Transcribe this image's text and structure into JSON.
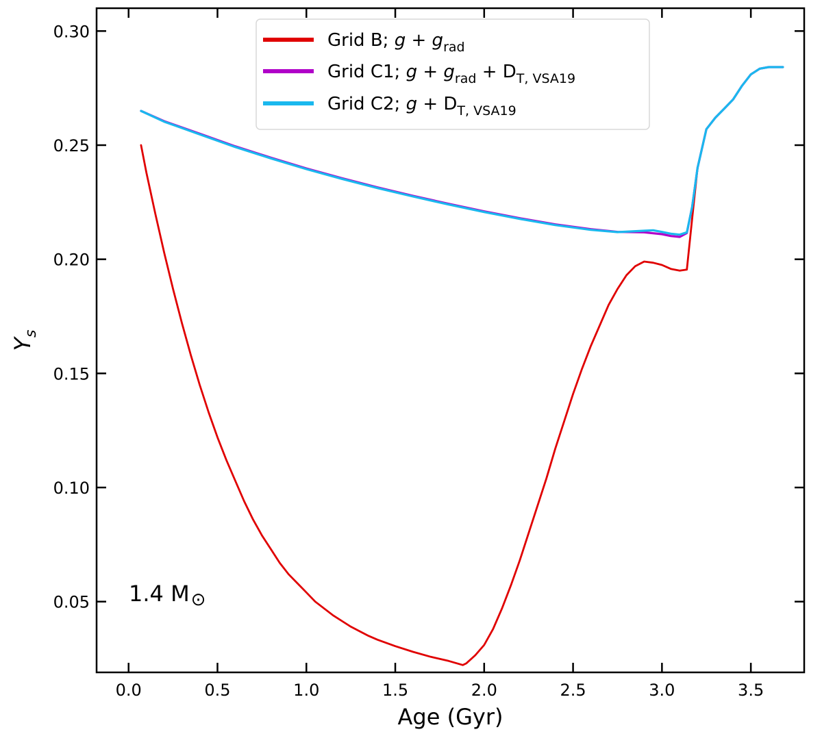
{
  "chart_data": {
    "type": "line",
    "title": "",
    "xlabel": "Age (Gyr)",
    "ylabel_main": "Y",
    "ylabel_sub": "s",
    "xlim": [
      -0.18,
      3.8
    ],
    "ylim": [
      0.019,
      0.31
    ],
    "xticks": [
      0.0,
      0.5,
      1.0,
      1.5,
      2.0,
      2.5,
      3.0,
      3.5
    ],
    "xtick_labels": [
      "0.0",
      "0.5",
      "1.0",
      "1.5",
      "2.0",
      "2.5",
      "3.0",
      "3.5"
    ],
    "yticks": [
      0.05,
      0.1,
      0.15,
      0.2,
      0.25,
      0.3
    ],
    "ytick_labels": [
      "0.05",
      "0.10",
      "0.15",
      "0.20",
      "0.25",
      "0.30"
    ],
    "grid": false,
    "legend_position": "top-center",
    "annotation": {
      "main": "1.4 M",
      "symbol": "⊙"
    },
    "series": [
      {
        "name": "Grid B",
        "legend": [
          {
            "t": "Grid B; ",
            "s": "n"
          },
          {
            "t": "g",
            "s": "i"
          },
          {
            "t": " + ",
            "s": "n"
          },
          {
            "t": "g",
            "s": "i"
          },
          {
            "t": "rad",
            "s": "sub"
          }
        ],
        "color": "#e00000",
        "points": [
          [
            0.07,
            0.25
          ],
          [
            0.1,
            0.238
          ],
          [
            0.15,
            0.22
          ],
          [
            0.2,
            0.203
          ],
          [
            0.25,
            0.187
          ],
          [
            0.3,
            0.172
          ],
          [
            0.35,
            0.158
          ],
          [
            0.4,
            0.145
          ],
          [
            0.45,
            0.133
          ],
          [
            0.5,
            0.122
          ],
          [
            0.55,
            0.112
          ],
          [
            0.6,
            0.103
          ],
          [
            0.65,
            0.094
          ],
          [
            0.7,
            0.086
          ],
          [
            0.75,
            0.079
          ],
          [
            0.8,
            0.073
          ],
          [
            0.85,
            0.067
          ],
          [
            0.9,
            0.062
          ],
          [
            0.95,
            0.058
          ],
          [
            1.0,
            0.054
          ],
          [
            1.05,
            0.05
          ],
          [
            1.1,
            0.047
          ],
          [
            1.15,
            0.044
          ],
          [
            1.2,
            0.0415
          ],
          [
            1.25,
            0.039
          ],
          [
            1.3,
            0.037
          ],
          [
            1.35,
            0.035
          ],
          [
            1.4,
            0.0333
          ],
          [
            1.5,
            0.0305
          ],
          [
            1.6,
            0.028
          ],
          [
            1.7,
            0.0258
          ],
          [
            1.8,
            0.024
          ],
          [
            1.88,
            0.0222
          ],
          [
            1.9,
            0.023
          ],
          [
            1.95,
            0.0265
          ],
          [
            2.0,
            0.031
          ],
          [
            2.05,
            0.038
          ],
          [
            2.1,
            0.047
          ],
          [
            2.15,
            0.057
          ],
          [
            2.2,
            0.068
          ],
          [
            2.25,
            0.08
          ],
          [
            2.3,
            0.092
          ],
          [
            2.35,
            0.104
          ],
          [
            2.4,
            0.117
          ],
          [
            2.45,
            0.129
          ],
          [
            2.5,
            0.141
          ],
          [
            2.55,
            0.152
          ],
          [
            2.6,
            0.162
          ],
          [
            2.65,
            0.171
          ],
          [
            2.7,
            0.18
          ],
          [
            2.75,
            0.187
          ],
          [
            2.8,
            0.193
          ],
          [
            2.85,
            0.197
          ],
          [
            2.9,
            0.199
          ],
          [
            2.95,
            0.1985
          ],
          [
            3.0,
            0.1975
          ],
          [
            3.05,
            0.1958
          ],
          [
            3.1,
            0.195
          ],
          [
            3.14,
            0.1955
          ],
          [
            3.17,
            0.218
          ],
          [
            3.2,
            0.24
          ],
          [
            3.25,
            0.257
          ],
          [
            3.3,
            0.262
          ],
          [
            3.35,
            0.266
          ],
          [
            3.4,
            0.27
          ],
          [
            3.45,
            0.276
          ],
          [
            3.5,
            0.281
          ],
          [
            3.55,
            0.2835
          ],
          [
            3.6,
            0.2842
          ],
          [
            3.68,
            0.2842
          ]
        ]
      },
      {
        "name": "Grid C1",
        "legend": [
          {
            "t": "Grid C1; ",
            "s": "n"
          },
          {
            "t": "g",
            "s": "i"
          },
          {
            "t": " + ",
            "s": "n"
          },
          {
            "t": "g",
            "s": "i"
          },
          {
            "t": "rad",
            "s": "sub"
          },
          {
            "t": " + D",
            "s": "n"
          },
          {
            "t": "T, VSA19",
            "s": "sub"
          }
        ],
        "color": "#b000c8",
        "points": [
          [
            0.07,
            0.265
          ],
          [
            0.2,
            0.2605
          ],
          [
            0.4,
            0.255
          ],
          [
            0.6,
            0.2495
          ],
          [
            0.8,
            0.2445
          ],
          [
            1.0,
            0.2398
          ],
          [
            1.2,
            0.2355
          ],
          [
            1.4,
            0.2315
          ],
          [
            1.6,
            0.2278
          ],
          [
            1.8,
            0.2243
          ],
          [
            2.0,
            0.221
          ],
          [
            2.2,
            0.218
          ],
          [
            2.4,
            0.2153
          ],
          [
            2.6,
            0.2132
          ],
          [
            2.75,
            0.212
          ],
          [
            2.9,
            0.2118
          ],
          [
            3.0,
            0.211
          ],
          [
            3.05,
            0.2102
          ],
          [
            3.1,
            0.2098
          ],
          [
            3.14,
            0.2115
          ],
          [
            3.17,
            0.223
          ],
          [
            3.2,
            0.24
          ],
          [
            3.25,
            0.257
          ],
          [
            3.3,
            0.262
          ],
          [
            3.35,
            0.266
          ],
          [
            3.4,
            0.27
          ],
          [
            3.45,
            0.276
          ],
          [
            3.5,
            0.281
          ],
          [
            3.55,
            0.2835
          ],
          [
            3.6,
            0.2842
          ],
          [
            3.68,
            0.2842
          ]
        ]
      },
      {
        "name": "Grid C2",
        "legend": [
          {
            "t": "Grid C2; ",
            "s": "n"
          },
          {
            "t": "g",
            "s": "i"
          },
          {
            "t": " + D",
            "s": "n"
          },
          {
            "t": "T, VSA19",
            "s": "sub"
          }
        ],
        "color": "#1ab8ee",
        "points": [
          [
            0.07,
            0.265
          ],
          [
            0.2,
            0.2603
          ],
          [
            0.4,
            0.2547
          ],
          [
            0.6,
            0.2492
          ],
          [
            0.8,
            0.2442
          ],
          [
            1.0,
            0.2395
          ],
          [
            1.2,
            0.2352
          ],
          [
            1.4,
            0.2312
          ],
          [
            1.6,
            0.2275
          ],
          [
            1.8,
            0.224
          ],
          [
            2.0,
            0.2207
          ],
          [
            2.2,
            0.2177
          ],
          [
            2.4,
            0.215
          ],
          [
            2.6,
            0.2129
          ],
          [
            2.75,
            0.2119
          ],
          [
            2.9,
            0.2125
          ],
          [
            2.95,
            0.2127
          ],
          [
            3.0,
            0.212
          ],
          [
            3.05,
            0.2112
          ],
          [
            3.1,
            0.2108
          ],
          [
            3.14,
            0.2118
          ],
          [
            3.17,
            0.223
          ],
          [
            3.2,
            0.24
          ],
          [
            3.25,
            0.257
          ],
          [
            3.3,
            0.262
          ],
          [
            3.35,
            0.266
          ],
          [
            3.4,
            0.27
          ],
          [
            3.45,
            0.276
          ],
          [
            3.5,
            0.281
          ],
          [
            3.55,
            0.2835
          ],
          [
            3.6,
            0.2842
          ],
          [
            3.68,
            0.2842
          ]
        ]
      }
    ]
  }
}
